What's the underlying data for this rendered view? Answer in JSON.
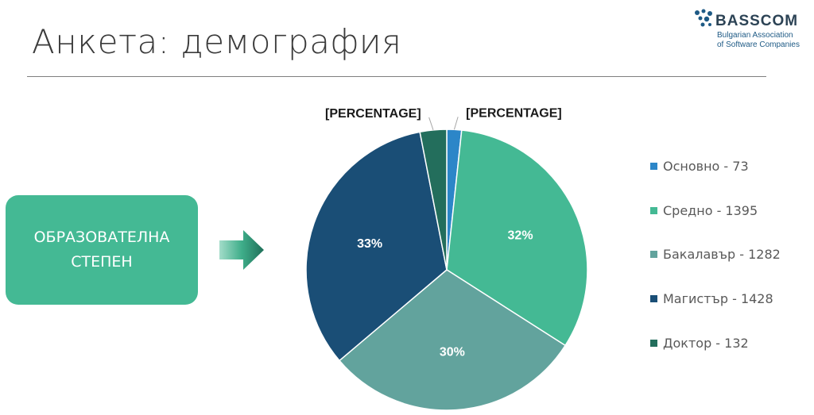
{
  "slide": {
    "title": "Анкета: демография",
    "category_label_line1": "ОБРАЗОВАТЕЛНА",
    "category_label_line2": "СТЕПЕН"
  },
  "logo": {
    "name": "BASSCOM",
    "subtitle_line1": "Bulgarian Association",
    "subtitle_line2": "of Software Companies"
  },
  "colors": {
    "accent_green": "#44b994",
    "dark_blue": "#1a4e76",
    "title_gray": "#3b3b3b"
  },
  "chart_data": {
    "type": "pie",
    "title": "",
    "categories": [
      "Основно",
      "Средно",
      "Бакалавър",
      "Магистър",
      "Доктор"
    ],
    "values": [
      73,
      1395,
      1282,
      1428,
      132
    ],
    "colors": [
      "#2c86c8",
      "#44b994",
      "#62a39d",
      "#1a4e76",
      "#236e5c"
    ],
    "legend_labels": [
      "Основно - 73",
      "Средно - 1395",
      "Бакалавър - 1282",
      "Магистър - 1428",
      "Доктор - 132"
    ],
    "data_labels": [
      "[PERCENTAGE]",
      "32%",
      "30%",
      "33%",
      "[PERCENTAGE]"
    ],
    "label_position": [
      "outside",
      "inside",
      "inside",
      "inside",
      "outside"
    ],
    "legend_position": "right"
  }
}
